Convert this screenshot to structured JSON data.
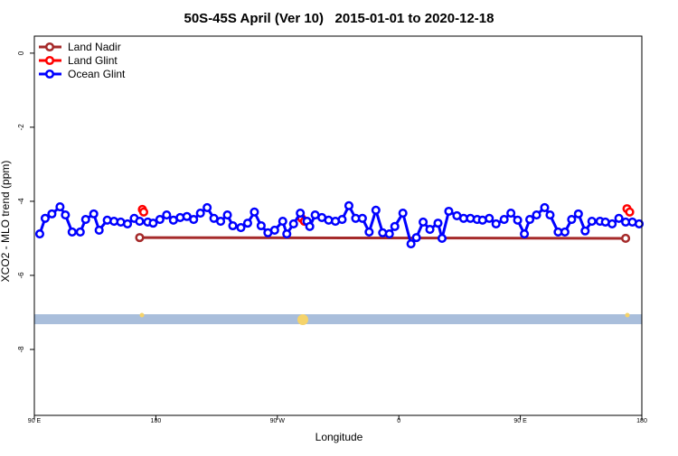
{
  "chart_data": {
    "type": "line",
    "title": "50S-45S April (Ver 10)   2015-01-01 to 2020-12-18",
    "xlabel": "Longitude",
    "ylabel": "XCO2 - MLO trend (ppm)",
    "xlim": [
      90,
      540
    ],
    "ylim": [
      -9.78,
      0.46
    ],
    "xticks": [
      {
        "value": 90,
        "label": "90 E"
      },
      180,
      {
        "value": 270,
        "label": "90 W"
      },
      {
        "value": 360,
        "label": "0"
      },
      {
        "value": 450,
        "label": "90 E"
      },
      {
        "value": 540,
        "label": "180"
      }
    ],
    "yticks": [
      0,
      -2,
      -4,
      -6,
      -8
    ],
    "legend": "top-left",
    "series": [
      {
        "name": "Land Nadir",
        "color": "#a52a2a",
        "x": [
          168,
          528
        ],
        "values": [
          -4.98,
          -5.0
        ]
      },
      {
        "name": "Land Glint",
        "color": "#ff0000",
        "x": [
          170,
          171,
          null,
          288,
          290,
          null,
          529,
          531
        ],
        "values": [
          -4.22,
          -4.29,
          null,
          -4.46,
          -4.54,
          null,
          -4.2,
          -4.29
        ]
      },
      {
        "name": "Ocean Glint",
        "color": "#0000ff",
        "x": [
          94,
          98,
          103,
          109,
          113,
          118,
          124,
          128,
          134,
          138,
          144,
          149,
          154,
          159,
          164,
          168,
          174,
          178,
          183,
          188,
          193,
          198,
          203,
          208,
          213,
          218,
          223,
          228,
          233,
          237,
          243,
          248,
          253,
          258,
          263,
          268,
          274,
          277,
          282,
          287,
          292,
          294,
          298,
          303,
          308,
          313,
          318,
          323,
          328,
          333,
          338,
          343,
          348,
          353,
          357,
          363,
          369,
          373,
          378,
          383,
          389,
          392,
          397,
          403,
          408,
          413,
          418,
          422,
          427,
          432,
          438,
          443,
          448,
          453,
          457,
          462,
          468,
          472,
          478,
          483,
          488,
          493,
          498,
          503,
          509,
          513,
          518,
          523,
          528,
          533,
          538
        ],
        "values": [
          -4.88,
          -4.46,
          -4.34,
          -4.15,
          -4.37,
          -4.83,
          -4.83,
          -4.49,
          -4.34,
          -4.78,
          -4.51,
          -4.54,
          -4.56,
          -4.61,
          -4.46,
          -4.54,
          -4.56,
          -4.59,
          -4.49,
          -4.37,
          -4.51,
          -4.44,
          -4.41,
          -4.49,
          -4.32,
          -4.17,
          -4.46,
          -4.54,
          -4.37,
          -4.66,
          -4.71,
          -4.59,
          -4.29,
          -4.66,
          -4.85,
          -4.78,
          -4.54,
          -4.88,
          -4.61,
          -4.32,
          -4.54,
          -4.68,
          -4.37,
          -4.44,
          -4.51,
          -4.54,
          -4.49,
          -4.12,
          -4.46,
          -4.46,
          -4.83,
          -4.24,
          -4.85,
          -4.88,
          -4.68,
          -4.32,
          -5.15,
          -4.98,
          -4.56,
          -4.76,
          -4.59,
          -5.0,
          -4.27,
          -4.39,
          -4.46,
          -4.46,
          -4.49,
          -4.51,
          -4.46,
          -4.61,
          -4.49,
          -4.32,
          -4.51,
          -4.88,
          -4.49,
          -4.37,
          -4.17,
          -4.37,
          -4.83,
          -4.83,
          -4.49,
          -4.34,
          -4.8,
          -4.54,
          -4.54,
          -4.56,
          -4.61,
          -4.46,
          -4.56,
          -4.56,
          -4.61
        ]
      }
    ]
  }
}
